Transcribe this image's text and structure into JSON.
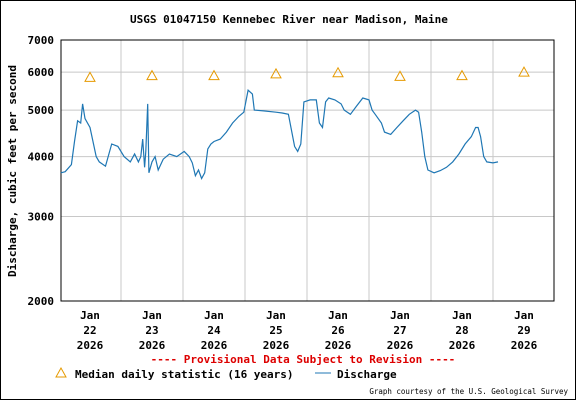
{
  "chart_data": {
    "type": "line",
    "title": "USGS 01047150 Kennebec River near Madison, Maine",
    "ylabel": "Discharge, cubic feet per second",
    "xlabel": "",
    "y_scale": "log",
    "ylim": [
      2000,
      7000
    ],
    "y_ticks": [
      {
        "value": 2000,
        "label": "2000"
      },
      {
        "value": 3000,
        "label": "3000"
      },
      {
        "value": 4000,
        "label": "4000"
      },
      {
        "value": 5000,
        "label": "5000"
      },
      {
        "value": 6000,
        "label": "6000"
      },
      {
        "value": 7000,
        "label": "7000"
      }
    ],
    "x_ticks": [
      {
        "day": 0,
        "label": [
          "Jan",
          "22",
          "2026"
        ]
      },
      {
        "day": 1,
        "label": [
          "Jan",
          "23",
          "2026"
        ]
      },
      {
        "day": 2,
        "label": [
          "Jan",
          "24",
          "2026"
        ]
      },
      {
        "day": 3,
        "label": [
          "Jan",
          "25",
          "2026"
        ]
      },
      {
        "day": 4,
        "label": [
          "Jan",
          "26",
          "2026"
        ]
      },
      {
        "day": 5,
        "label": [
          "Jan",
          "27",
          "2026"
        ]
      },
      {
        "day": 6,
        "label": [
          "Jan",
          "28",
          "2026"
        ]
      },
      {
        "day": 7,
        "label": [
          "Jan",
          "29",
          "2026"
        ]
      }
    ],
    "grid": true,
    "series": [
      {
        "name": "Discharge",
        "color": "#1f77b4",
        "points": [
          [
            -0.47,
            3700
          ],
          [
            -0.4,
            3720
          ],
          [
            -0.3,
            3850
          ],
          [
            -0.25,
            4300
          ],
          [
            -0.2,
            4750
          ],
          [
            -0.15,
            4700
          ],
          [
            -0.12,
            5150
          ],
          [
            -0.08,
            4800
          ],
          [
            0.0,
            4600
          ],
          [
            0.1,
            4000
          ],
          [
            0.15,
            3900
          ],
          [
            0.25,
            3820
          ],
          [
            0.35,
            4250
          ],
          [
            0.45,
            4200
          ],
          [
            0.55,
            4000
          ],
          [
            0.65,
            3900
          ],
          [
            0.72,
            4050
          ],
          [
            0.78,
            3900
          ],
          [
            0.82,
            4000
          ],
          [
            0.85,
            4350
          ],
          [
            0.88,
            3800
          ],
          [
            0.9,
            4100
          ],
          [
            0.93,
            5150
          ],
          [
            0.95,
            3700
          ],
          [
            1.0,
            3900
          ],
          [
            1.05,
            4000
          ],
          [
            1.1,
            3750
          ],
          [
            1.18,
            3950
          ],
          [
            1.28,
            4050
          ],
          [
            1.4,
            4000
          ],
          [
            1.52,
            4100
          ],
          [
            1.6,
            4000
          ],
          [
            1.65,
            3880
          ],
          [
            1.7,
            3650
          ],
          [
            1.75,
            3750
          ],
          [
            1.8,
            3600
          ],
          [
            1.85,
            3700
          ],
          [
            1.9,
            4150
          ],
          [
            1.95,
            4250
          ],
          [
            2.0,
            4300
          ],
          [
            2.1,
            4350
          ],
          [
            2.2,
            4500
          ],
          [
            2.3,
            4700
          ],
          [
            2.4,
            4850
          ],
          [
            2.48,
            4950
          ],
          [
            2.55,
            5500
          ],
          [
            2.62,
            5400
          ],
          [
            2.65,
            5000
          ],
          [
            2.8,
            4980
          ],
          [
            3.0,
            4950
          ],
          [
            3.1,
            4930
          ],
          [
            3.2,
            4900
          ],
          [
            3.3,
            4200
          ],
          [
            3.35,
            4100
          ],
          [
            3.4,
            4250
          ],
          [
            3.45,
            5200
          ],
          [
            3.55,
            5250
          ],
          [
            3.65,
            5250
          ],
          [
            3.7,
            4700
          ],
          [
            3.75,
            4600
          ],
          [
            3.8,
            5200
          ],
          [
            3.85,
            5300
          ],
          [
            3.95,
            5250
          ],
          [
            4.05,
            5150
          ],
          [
            4.1,
            5000
          ],
          [
            4.2,
            4900
          ],
          [
            4.3,
            5100
          ],
          [
            4.4,
            5300
          ],
          [
            4.5,
            5250
          ],
          [
            4.55,
            5000
          ],
          [
            4.6,
            4900
          ],
          [
            4.7,
            4700
          ],
          [
            4.75,
            4500
          ],
          [
            4.85,
            4450
          ],
          [
            4.95,
            4600
          ],
          [
            5.05,
            4750
          ],
          [
            5.15,
            4900
          ],
          [
            5.25,
            5000
          ],
          [
            5.3,
            4950
          ],
          [
            5.35,
            4500
          ],
          [
            5.4,
            4000
          ],
          [
            5.45,
            3750
          ],
          [
            5.55,
            3700
          ],
          [
            5.65,
            3740
          ],
          [
            5.75,
            3800
          ],
          [
            5.85,
            3900
          ],
          [
            5.95,
            4050
          ],
          [
            6.05,
            4250
          ],
          [
            6.15,
            4400
          ],
          [
            6.22,
            4600
          ],
          [
            6.26,
            4600
          ],
          [
            6.3,
            4400
          ],
          [
            6.35,
            4000
          ],
          [
            6.4,
            3900
          ],
          [
            6.5,
            3880
          ],
          [
            6.58,
            3900
          ]
        ]
      }
    ],
    "median_series": {
      "name": "Median daily statistic (16 years)",
      "color": "#e69a00",
      "points": [
        [
          0,
          5850
        ],
        [
          1,
          5900
        ],
        [
          2,
          5900
        ],
        [
          3,
          5950
        ],
        [
          4,
          5980
        ],
        [
          5,
          5880
        ],
        [
          6,
          5900
        ],
        [
          7,
          6000
        ]
      ]
    },
    "notice": "---- Provisional Data Subject to Revision ----",
    "legend": [
      {
        "symbol": "triangle",
        "label": "Median daily statistic (16 years)"
      },
      {
        "symbol": "line",
        "label": "Discharge"
      }
    ],
    "credit": "Graph courtesy of the U.S. Geological Survey",
    "legend_position": "bottom"
  }
}
